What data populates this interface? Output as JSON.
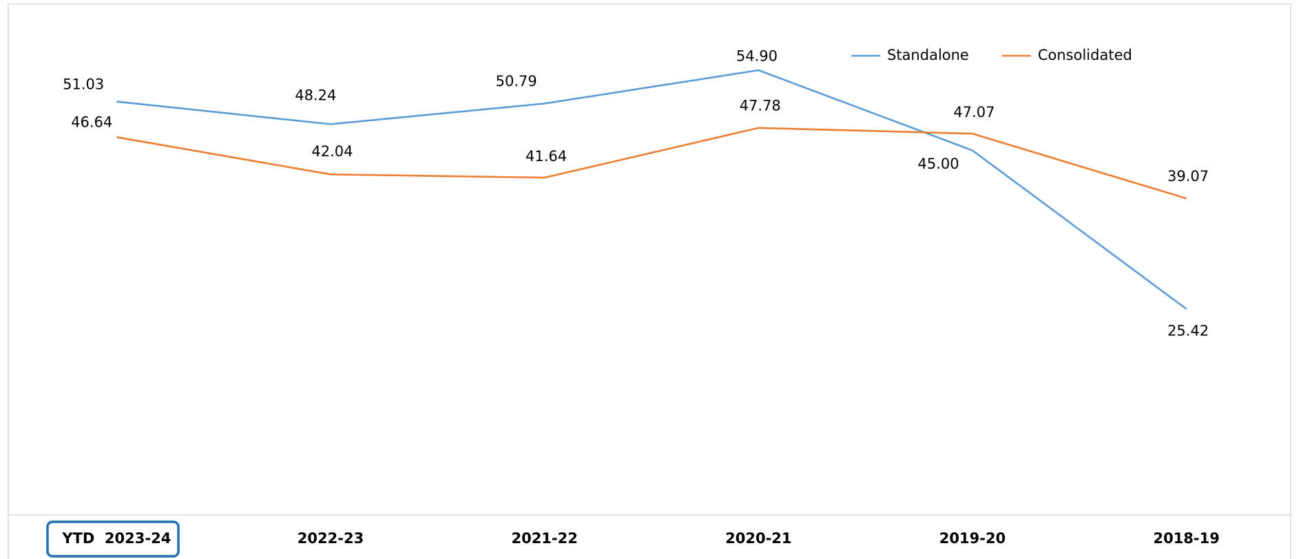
{
  "chart_data": {
    "type": "line",
    "categories": [
      "YTD  2023-24",
      "2022-23",
      "2021-22",
      "2020-21",
      "2019-20",
      "2018-19"
    ],
    "series": [
      {
        "name": "Standalone",
        "color": "#5b9bd5",
        "values": [
          51.03,
          48.24,
          50.79,
          54.9,
          45.0,
          25.42
        ],
        "value_labels": [
          "51.03",
          "48.24",
          "50.79",
          "54.90",
          "45.00",
          "25.42"
        ]
      },
      {
        "name": "Consolidated",
        "color": "#ed7d31",
        "values": [
          46.64,
          42.04,
          41.64,
          47.78,
          47.07,
          39.07
        ],
        "value_labels": [
          "46.64",
          "42.04",
          "41.64",
          "47.78",
          "47.07",
          "39.07"
        ]
      }
    ],
    "ylim": [
      0,
      60
    ],
    "grid": false,
    "legend": "top-right"
  }
}
